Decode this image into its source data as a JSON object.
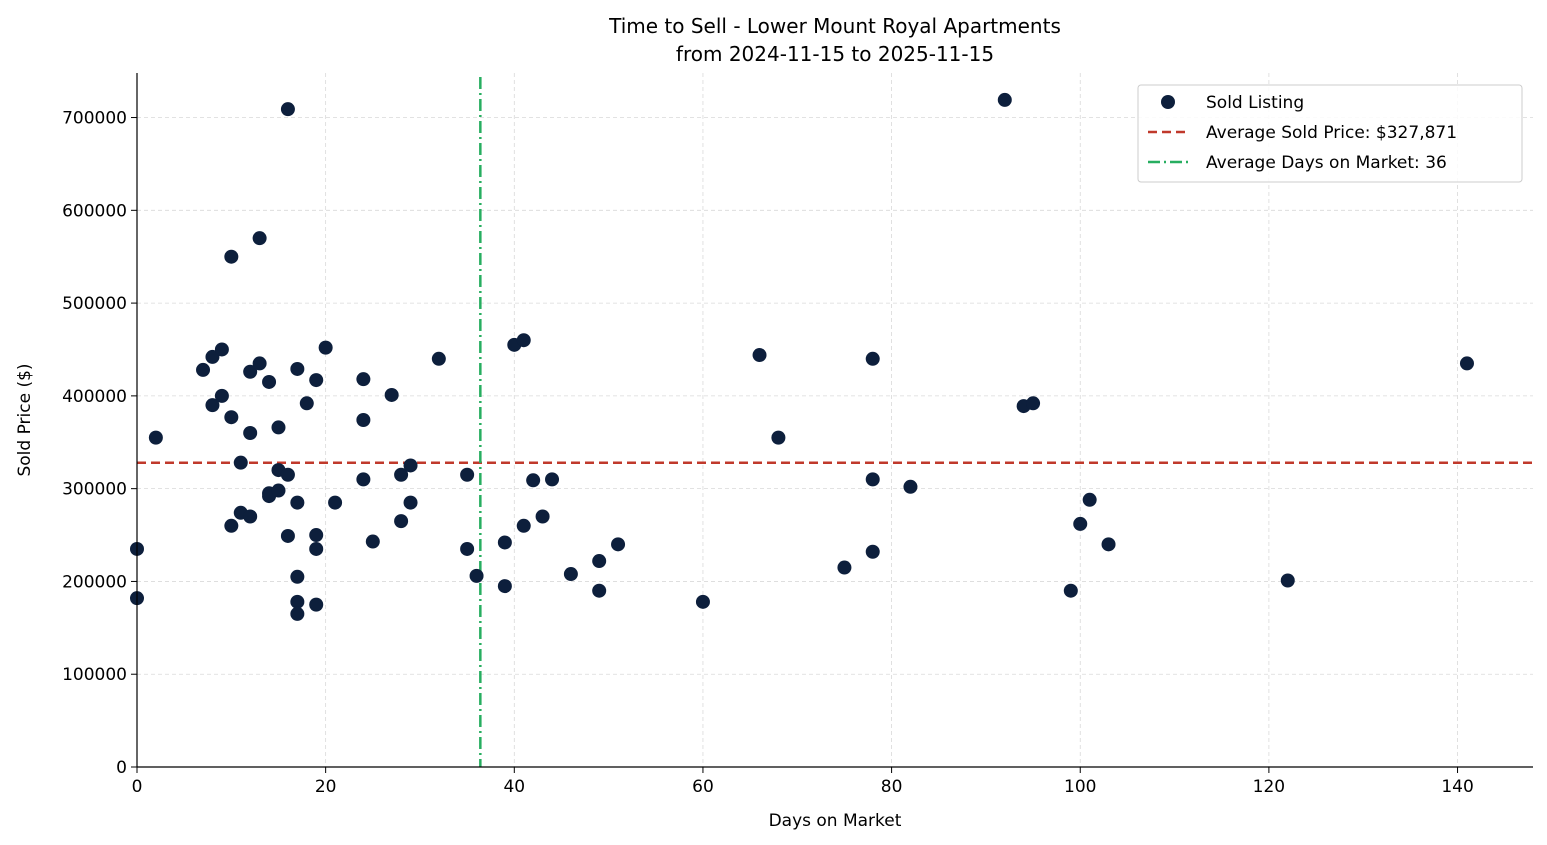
{
  "chart_data": {
    "type": "scatter",
    "title": "Time to Sell - Lower Mount Royal Apartments",
    "subtitle": "from 2024-11-15 to 2025-11-15",
    "xlabel": "Days on Market",
    "ylabel": "Sold Price ($)",
    "xlim": [
      0,
      148
    ],
    "ylim": [
      0,
      748000
    ],
    "xticks": [
      0,
      20,
      40,
      60,
      80,
      100,
      120,
      140
    ],
    "yticks": [
      0,
      100000,
      200000,
      300000,
      400000,
      500000,
      600000,
      700000
    ],
    "grid": true,
    "legend_position": "top-right",
    "colors": {
      "points": "#0d1f3c",
      "avg_price_line": "#c0392b",
      "avg_days_line": "#27ae60",
      "grid": "#d9d9d9",
      "axis": "#000000"
    },
    "legend": {
      "points_label": "Sold Listing",
      "avg_price_label": "Average Sold Price: $327,871",
      "avg_days_label": "Average Days on Market: 36"
    },
    "avg_price": 327871,
    "avg_days": 36.4,
    "points": [
      [
        0,
        235000
      ],
      [
        0,
        182000
      ],
      [
        2,
        355000
      ],
      [
        7,
        428000
      ],
      [
        8,
        442000
      ],
      [
        8,
        390000
      ],
      [
        9,
        450000
      ],
      [
        9,
        400000
      ],
      [
        10,
        550000
      ],
      [
        10,
        377000
      ],
      [
        10,
        260000
      ],
      [
        11,
        328000
      ],
      [
        11,
        274000
      ],
      [
        12,
        426000
      ],
      [
        12,
        360000
      ],
      [
        12,
        270000
      ],
      [
        13,
        570000
      ],
      [
        13,
        435000
      ],
      [
        14,
        415000
      ],
      [
        14,
        295000
      ],
      [
        14,
        292000
      ],
      [
        15,
        366000
      ],
      [
        15,
        320000
      ],
      [
        15,
        298000
      ],
      [
        16,
        709000
      ],
      [
        16,
        315000
      ],
      [
        16,
        249000
      ],
      [
        17,
        429000
      ],
      [
        17,
        285000
      ],
      [
        17,
        205000
      ],
      [
        17,
        178000
      ],
      [
        17,
        165000
      ],
      [
        18,
        392000
      ],
      [
        19,
        417000
      ],
      [
        19,
        250000
      ],
      [
        19,
        235000
      ],
      [
        19,
        175000
      ],
      [
        20,
        452000
      ],
      [
        21,
        285000
      ],
      [
        24,
        418000
      ],
      [
        24,
        374000
      ],
      [
        24,
        310000
      ],
      [
        25,
        243000
      ],
      [
        27,
        401000
      ],
      [
        28,
        315000
      ],
      [
        28,
        265000
      ],
      [
        29,
        325000
      ],
      [
        29,
        285000
      ],
      [
        32,
        440000
      ],
      [
        35,
        315000
      ],
      [
        35,
        235000
      ],
      [
        36,
        206000
      ],
      [
        39,
        242000
      ],
      [
        39,
        195000
      ],
      [
        40,
        455000
      ],
      [
        41,
        460000
      ],
      [
        41,
        260000
      ],
      [
        42,
        309000
      ],
      [
        43,
        270000
      ],
      [
        44,
        310000
      ],
      [
        46,
        208000
      ],
      [
        49,
        222000
      ],
      [
        49,
        190000
      ],
      [
        51,
        240000
      ],
      [
        60,
        178000
      ],
      [
        66,
        444000
      ],
      [
        68,
        355000
      ],
      [
        75,
        215000
      ],
      [
        78,
        440000
      ],
      [
        78,
        310000
      ],
      [
        78,
        232000
      ],
      [
        82,
        302000
      ],
      [
        92,
        719000
      ],
      [
        94,
        389000
      ],
      [
        95,
        392000
      ],
      [
        99,
        190000
      ],
      [
        100,
        262000
      ],
      [
        101,
        288000
      ],
      [
        103,
        240000
      ],
      [
        122,
        201000
      ],
      [
        141,
        435000
      ]
    ]
  }
}
